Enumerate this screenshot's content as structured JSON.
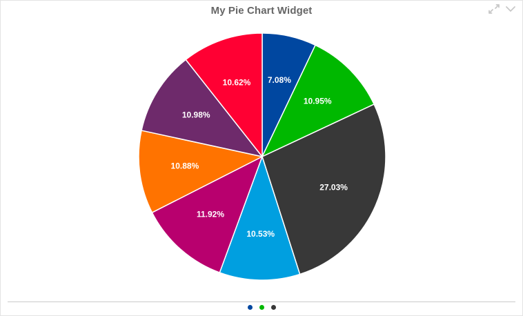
{
  "widget": {
    "title": "My Pie Chart Widget",
    "tools": [
      {
        "name": "expand-icon",
        "color": "#c8c8c8"
      },
      {
        "name": "chevron-down-icon",
        "color": "#c8c8c8"
      }
    ]
  },
  "chart_data": {
    "type": "pie",
    "title": "My Pie Chart Widget",
    "start_angle_deg": 0,
    "direction": "clockwise",
    "slices": [
      {
        "label": "7.08%",
        "value": 7.08,
        "color": "#0047a0"
      },
      {
        "label": "10.95%",
        "value": 10.95,
        "color": "#00b800"
      },
      {
        "label": "27.03%",
        "value": 27.03,
        "color": "#383838"
      },
      {
        "label": "10.53%",
        "value": 10.53,
        "color": "#009fe0"
      },
      {
        "label": "11.92%",
        "value": 11.92,
        "color": "#b8006e"
      },
      {
        "label": "10.88%",
        "value": 10.88,
        "color": "#ff7300"
      },
      {
        "label": "10.98%",
        "value": 10.98,
        "color": "#6e2a6b"
      },
      {
        "label": "10.62%",
        "value": 10.62,
        "color": "#ff0033"
      }
    ]
  },
  "pager": {
    "dots": [
      {
        "name": "page-dot-1",
        "color": "#0047a0"
      },
      {
        "name": "page-dot-2",
        "color": "#00b800"
      },
      {
        "name": "page-dot-3",
        "color": "#383838"
      }
    ]
  }
}
